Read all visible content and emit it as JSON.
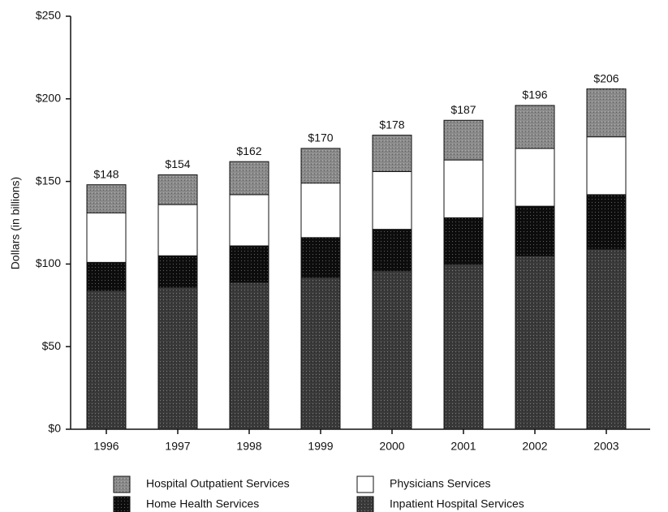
{
  "chart_data": {
    "type": "stacked_bar",
    "y_label": "Dollars (in billions)",
    "categories": [
      "1996",
      "1997",
      "1998",
      "1999",
      "2000",
      "2001",
      "2002",
      "2003"
    ],
    "series": [
      {
        "name": "Inpatient Hospital Services",
        "color": "#3a3a3a",
        "values": [
          84,
          86,
          89,
          92,
          96,
          100,
          105,
          109
        ]
      },
      {
        "name": "Home Health Services",
        "color": "#0d0d0d",
        "values": [
          17,
          19,
          22,
          24,
          25,
          28,
          30,
          33
        ]
      },
      {
        "name": "Physicians Services",
        "color": "#ffffff",
        "values": [
          30,
          31,
          31,
          33,
          35,
          35,
          35,
          35
        ]
      },
      {
        "name": "Hospital Outpatient Services",
        "color": "#8a8a8a",
        "values": [
          17,
          18,
          20,
          21,
          22,
          24,
          26,
          29
        ]
      }
    ],
    "totals": [
      148,
      154,
      162,
      170,
      178,
      187,
      196,
      206
    ],
    "total_labels": [
      "$148",
      "$154",
      "$162",
      "$170",
      "$178",
      "$187",
      "$196",
      "$206"
    ],
    "ylim": [
      0,
      250
    ],
    "yticks": [
      {
        "value": 0,
        "label": "$0"
      },
      {
        "value": 50,
        "label": "$50"
      },
      {
        "value": 100,
        "label": "$100"
      },
      {
        "value": 150,
        "label": "$150"
      },
      {
        "value": 200,
        "label": "$200"
      },
      {
        "value": 250,
        "label": "$250"
      }
    ],
    "grid": false
  }
}
